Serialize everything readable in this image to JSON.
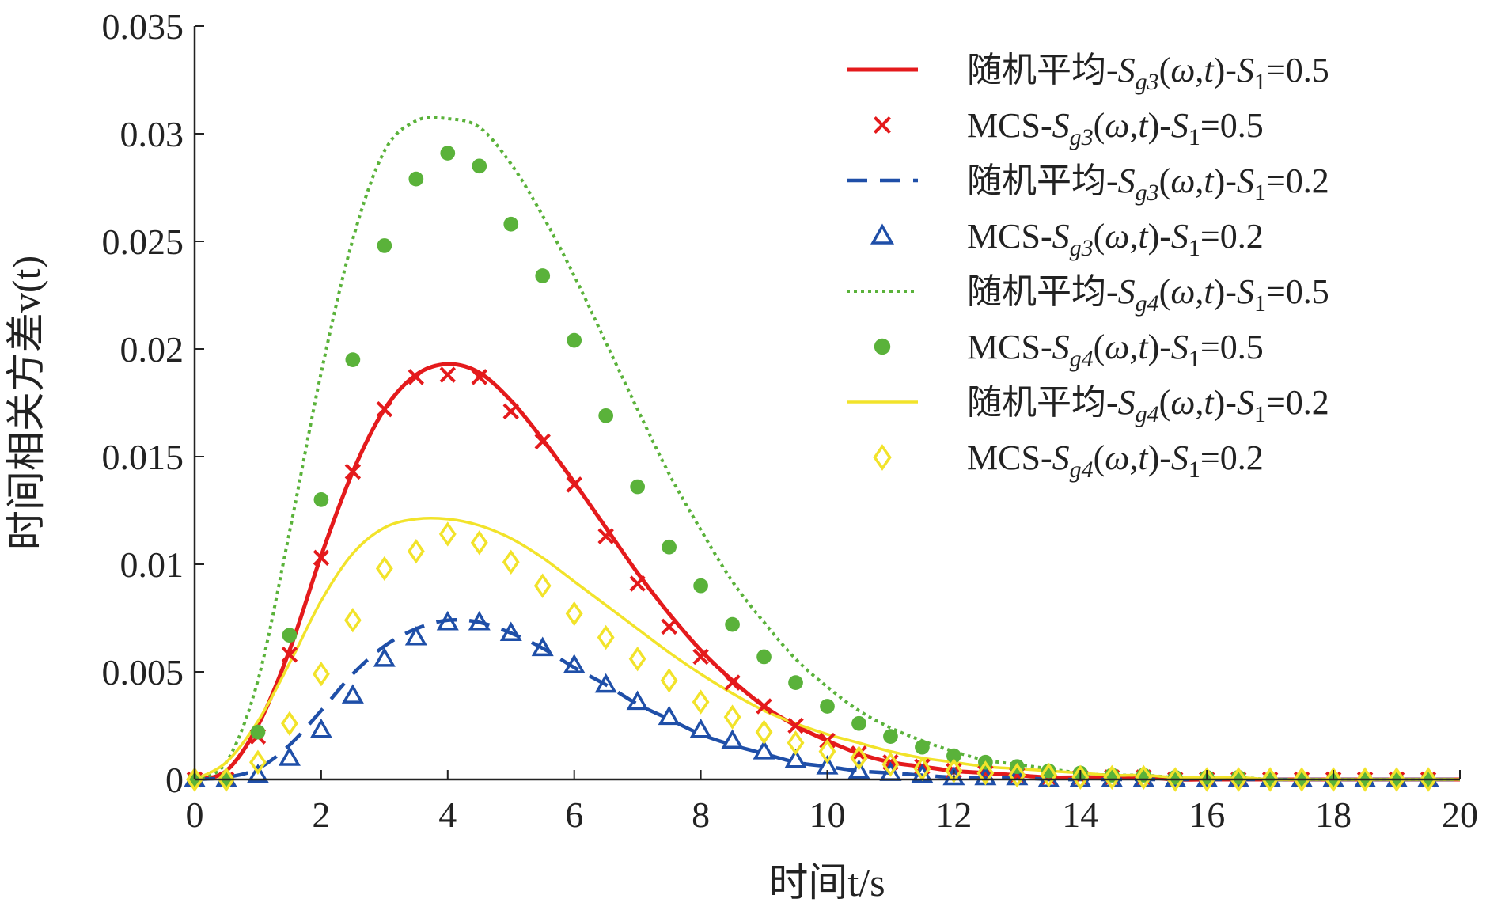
{
  "chart_data": {
    "type": "line",
    "xlabel": "时间t/s",
    "ylabel": "时间相关方差v(t)",
    "xlim": [
      0,
      20
    ],
    "ylim": [
      0,
      0.035
    ],
    "xticks": [
      "0",
      "2",
      "4",
      "6",
      "8",
      "10",
      "12",
      "14",
      "16",
      "18",
      "20"
    ],
    "yticks": [
      "0",
      "0.005",
      "0.01",
      "0.015",
      "0.02",
      "0.025",
      "0.03",
      "0.035"
    ],
    "grid": false,
    "legend_position": "top-right",
    "x_points": [
      0,
      0.5,
      1,
      1.5,
      2,
      2.5,
      3,
      3.5,
      4,
      4.5,
      5,
      5.5,
      6,
      6.5,
      7,
      7.5,
      8,
      8.5,
      9,
      9.5,
      10,
      10.5,
      11,
      11.5,
      12,
      12.5,
      13,
      13.5,
      14,
      14.5,
      15,
      15.5,
      16,
      16.5,
      17,
      17.5,
      18,
      18.5,
      19,
      19.5
    ],
    "series": [
      {
        "name": "随机平均-Sg3(ω,t)-S1=0.5",
        "kind": "line",
        "style": "solid",
        "color": "#e41a1c",
        "values": [
          0,
          0.0004,
          0.0025,
          0.006,
          0.0104,
          0.0143,
          0.0172,
          0.0188,
          0.0193,
          0.0189,
          0.0176,
          0.0158,
          0.0138,
          0.0117,
          0.0096,
          0.0077,
          0.006,
          0.0046,
          0.0034,
          0.0025,
          0.0018,
          0.0012,
          0.0008,
          0.0006,
          0.0004,
          0.0003,
          0.0002,
          0.0001,
          0.0001,
          0.0001,
          0.0001,
          0,
          0,
          0,
          0,
          0,
          0,
          0,
          0,
          0
        ]
      },
      {
        "name": "MCS-Sg3(ω,t)-S1=0.5",
        "kind": "scatter",
        "marker": "x",
        "color": "#e41a1c",
        "values": [
          0,
          0,
          0.002,
          0.0058,
          0.0103,
          0.0143,
          0.0172,
          0.0187,
          0.0188,
          0.0187,
          0.0171,
          0.0157,
          0.0137,
          0.0113,
          0.0091,
          0.0071,
          0.0057,
          0.0045,
          0.0034,
          0.0025,
          0.0018,
          0.0012,
          0.0008,
          0.0006,
          0.0004,
          0.0003,
          0.0002,
          0.0001,
          0.0001,
          0.0001,
          0.0001,
          0,
          0,
          0,
          0,
          0,
          0,
          0,
          0,
          0
        ]
      },
      {
        "name": "随机平均-Sg3(ω,t)-S1=0.2",
        "kind": "line",
        "style": "dashed",
        "color": "#1f4fa8",
        "values": [
          0,
          0.0001,
          0.0005,
          0.0016,
          0.0032,
          0.0049,
          0.0062,
          0.007,
          0.0074,
          0.0073,
          0.0068,
          0.0061,
          0.0052,
          0.0044,
          0.0035,
          0.0028,
          0.0021,
          0.0016,
          0.0012,
          0.0008,
          0.0006,
          0.0004,
          0.0003,
          0.0002,
          0.0001,
          0.0001,
          0.0001,
          0,
          0,
          0,
          0,
          0,
          0,
          0,
          0,
          0,
          0,
          0,
          0,
          0
        ]
      },
      {
        "name": "MCS-Sg3(ω,t)-S1=0.2",
        "kind": "scatter",
        "marker": "triangle",
        "color": "#1f4fa8",
        "values": [
          0,
          0,
          0.0002,
          0.001,
          0.0023,
          0.0039,
          0.0056,
          0.0066,
          0.0073,
          0.0073,
          0.0068,
          0.0061,
          0.0053,
          0.0044,
          0.0036,
          0.0029,
          0.0023,
          0.0018,
          0.0013,
          0.0009,
          0.0006,
          0.0004,
          0.0003,
          0.0002,
          0.0001,
          0.0001,
          0.0001,
          0,
          0,
          0,
          0,
          0,
          0,
          0,
          0,
          0,
          0,
          0,
          0,
          0
        ]
      },
      {
        "name": "随机平均-Sg4(ω,t)-S1=0.5",
        "kind": "line",
        "style": "dotted",
        "color": "#5ab23a",
        "values": [
          0,
          0.0008,
          0.0046,
          0.0115,
          0.0189,
          0.0251,
          0.0292,
          0.0306,
          0.0307,
          0.0303,
          0.0286,
          0.0262,
          0.0234,
          0.0203,
          0.0172,
          0.0142,
          0.0116,
          0.0092,
          0.0073,
          0.0056,
          0.0043,
          0.0032,
          0.0024,
          0.0018,
          0.0013,
          0.0009,
          0.0007,
          0.0005,
          0.0003,
          0.0002,
          0.0002,
          0.0001,
          0.0001,
          0.0001,
          0,
          0,
          0,
          0,
          0,
          0
        ]
      },
      {
        "name": "MCS-Sg4(ω,t)-S1=0.5",
        "kind": "scatter",
        "marker": "circle",
        "color": "#5ab23a",
        "values": [
          0,
          0,
          0.0022,
          0.0067,
          0.013,
          0.0195,
          0.0248,
          0.0279,
          0.0291,
          0.0285,
          0.0258,
          0.0234,
          0.0204,
          0.0169,
          0.0136,
          0.0108,
          0.009,
          0.0072,
          0.0057,
          0.0045,
          0.0034,
          0.0026,
          0.002,
          0.0015,
          0.0011,
          0.0008,
          0.0006,
          0.0004,
          0.0003,
          0.0002,
          0.0002,
          0.0001,
          0.0001,
          0.0001,
          0,
          0,
          0,
          0,
          0,
          0
        ]
      },
      {
        "name": "随机平均-Sg4(ω,t)-S1=0.2",
        "kind": "line",
        "style": "solid-thin",
        "color": "#f2e32a",
        "values": [
          0,
          0.0008,
          0.0027,
          0.0054,
          0.0083,
          0.0105,
          0.0117,
          0.0121,
          0.0121,
          0.0118,
          0.0112,
          0.0103,
          0.0092,
          0.0081,
          0.007,
          0.0059,
          0.0049,
          0.004,
          0.0032,
          0.0026,
          0.0021,
          0.0017,
          0.0013,
          0.001,
          0.0008,
          0.0006,
          0.0005,
          0.0004,
          0.0003,
          0.0002,
          0.0002,
          0.0001,
          0.0001,
          0.0001,
          0,
          0,
          0,
          0,
          0,
          0
        ]
      },
      {
        "name": "MCS-Sg4(ω,t)-S1=0.2",
        "kind": "scatter",
        "marker": "diamond",
        "color": "#f2e32a",
        "values": [
          0,
          0,
          0.0008,
          0.0026,
          0.0049,
          0.0074,
          0.0098,
          0.0106,
          0.0114,
          0.011,
          0.0101,
          0.009,
          0.0077,
          0.0066,
          0.0056,
          0.0046,
          0.0036,
          0.0029,
          0.0022,
          0.0017,
          0.0013,
          0.001,
          0.0007,
          0.0005,
          0.0004,
          0.0003,
          0.0002,
          0.0002,
          0.0001,
          0.0001,
          0.0001,
          0,
          0,
          0,
          0,
          0,
          0,
          0,
          0,
          0
        ]
      }
    ],
    "legend": [
      {
        "prefix": "随机平均-",
        "mid": ",",
        "suffix": "-",
        "end": "=0.5",
        "sym": "S",
        "sub1": "g3",
        "omega": "ω",
        "t": "t",
        "s1": "S",
        "sub2": "1"
      },
      {
        "prefix": "MCS-",
        "mid": ",",
        "suffix": "-",
        "end": "=0.5",
        "sym": "S",
        "sub1": "g3",
        "omega": "ω",
        "t": "t",
        "s1": "S",
        "sub2": "1"
      },
      {
        "prefix": "随机平均-",
        "mid": ",",
        "suffix": "-",
        "end": "=0.2",
        "sym": "S",
        "sub1": "g3",
        "omega": "ω",
        "t": "t",
        "s1": "S",
        "sub2": "1"
      },
      {
        "prefix": "MCS-",
        "mid": ",",
        "suffix": "-",
        "end": "=0.2",
        "sym": "S",
        "sub1": "g3",
        "omega": "ω",
        "t": "t",
        "s1": "S",
        "sub2": "1"
      },
      {
        "prefix": "随机平均-",
        "mid": ",",
        "suffix": "-",
        "end": "=0.5",
        "sym": "S",
        "sub1": "g4",
        "omega": "ω",
        "t": "t",
        "s1": "S",
        "sub2": "1"
      },
      {
        "prefix": "MCS-",
        "mid": ",",
        "suffix": "-",
        "end": "=0.5",
        "sym": "S",
        "sub1": "g4",
        "omega": "ω",
        "t": "t",
        "s1": "S",
        "sub2": "1"
      },
      {
        "prefix": "随机平均-",
        "mid": ",",
        "suffix": "-",
        "end": "=0.2",
        "sym": "S",
        "sub1": "g4",
        "omega": "ω",
        "t": "t",
        "s1": "S",
        "sub2": "1"
      },
      {
        "prefix": "MCS-",
        "mid": ",",
        "suffix": "-",
        "end": "=0.2",
        "sym": "S",
        "sub1": "g4",
        "omega": "ω",
        "t": "t",
        "s1": "S",
        "sub2": "1"
      }
    ]
  }
}
